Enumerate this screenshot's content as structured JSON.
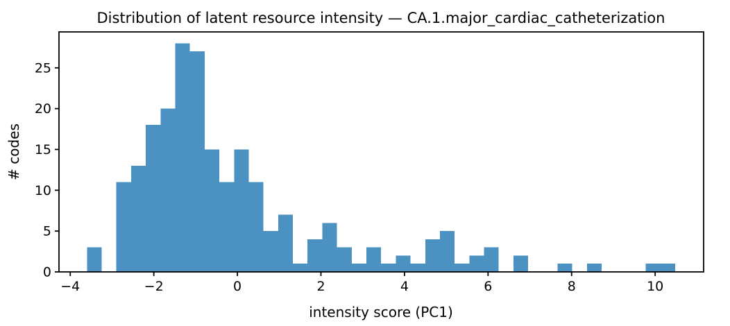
{
  "figure": {
    "title": "Distribution of latent resource intensity — CA.1.major_cardiac_catheterization"
  },
  "chart_data": {
    "type": "bar",
    "subtype": "histogram",
    "title": "Distribution of latent resource intensity — CA.1.major_cardiac_catheterization",
    "xlabel": "intensity score (PC1)",
    "ylabel": "# codes",
    "bin_start": -3.6,
    "bin_width": 0.352,
    "counts": [
      3,
      0,
      11,
      13,
      18,
      20,
      28,
      27,
      15,
      11,
      15,
      11,
      5,
      7,
      1,
      4,
      6,
      3,
      1,
      3,
      1,
      2,
      1,
      4,
      5,
      1,
      2,
      3,
      0,
      2,
      0,
      0,
      1,
      0,
      1,
      0,
      0,
      0,
      1,
      1
    ],
    "total_codes": 227,
    "xlim": [
      -4.27,
      11.16
    ],
    "ylim": [
      0,
      29.4
    ],
    "x_ticks": [
      {
        "value": -4,
        "label": "−4"
      },
      {
        "value": -2,
        "label": "−2"
      },
      {
        "value": 0,
        "label": "0"
      },
      {
        "value": 2,
        "label": "2"
      },
      {
        "value": 4,
        "label": "4"
      },
      {
        "value": 6,
        "label": "6"
      },
      {
        "value": 8,
        "label": "8"
      },
      {
        "value": 10,
        "label": "10"
      }
    ],
    "y_ticks": [
      {
        "value": 0,
        "label": "0"
      },
      {
        "value": 5,
        "label": "5"
      },
      {
        "value": 10,
        "label": "10"
      },
      {
        "value": 15,
        "label": "15"
      },
      {
        "value": 20,
        "label": "20"
      },
      {
        "value": 25,
        "label": "25"
      }
    ],
    "bar_color": "#4B92C3",
    "axis_color": "#000000",
    "text_color": "#000000",
    "grid": false,
    "legend_position": "none"
  }
}
